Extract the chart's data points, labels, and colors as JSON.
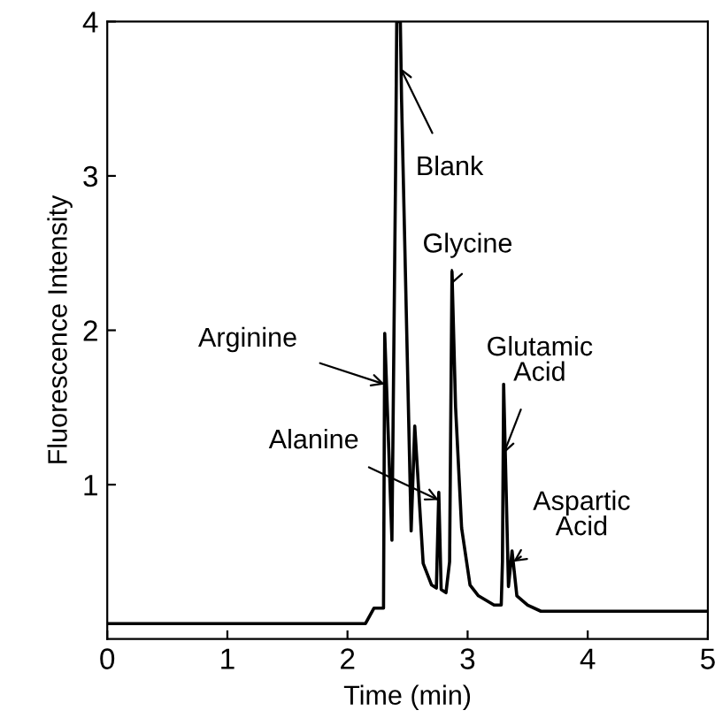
{
  "chart_data": {
    "type": "line",
    "xlabel": "Time (min)",
    "ylabel": "Fluorescence Intensity",
    "x": [
      0,
      2.15,
      2.22,
      2.29,
      2.3,
      2.31,
      2.37,
      2.4,
      2.41,
      2.44,
      2.45,
      2.53,
      2.56,
      2.63,
      2.7,
      2.74,
      2.76,
      2.78,
      2.82,
      2.85,
      2.87,
      2.9,
      2.95,
      3.02,
      3.09,
      3.22,
      3.28,
      3.29,
      3.3,
      3.34,
      3.37,
      3.41,
      3.5,
      3.61,
      5
    ],
    "series": [
      {
        "color": "#000000",
        "values": [
          0.1,
          0.1,
          0.2,
          0.2,
          0.2,
          1.98,
          0.64,
          3.0,
          4,
          4,
          3.5,
          0.7,
          1.38,
          0.49,
          0.35,
          0.33,
          0.95,
          0.32,
          0.3,
          0.5,
          2.38,
          1.5,
          0.72,
          0.35,
          0.28,
          0.22,
          0.22,
          0.5,
          1.65,
          0.34,
          0.57,
          0.28,
          0.22,
          0.18,
          0.18
        ]
      }
    ],
    "xlim": [
      0,
      5
    ],
    "ylim": [
      0,
      4
    ],
    "xticks": [
      0,
      1,
      2,
      3,
      4,
      5
    ],
    "yticks": [
      1,
      2,
      3,
      4
    ],
    "grid": false,
    "legend": false,
    "marker": "none",
    "line_style": "solid",
    "annotations": [
      {
        "text": "Arginine",
        "x": 2.31,
        "y": 1.65
      },
      {
        "text": "Blank",
        "x": 2.44,
        "y": 3.7
      },
      {
        "text": "Glycine",
        "x": 2.87,
        "y": 2.3
      },
      {
        "text": "Alanine",
        "x": 2.76,
        "y": 0.9
      },
      {
        "text": "Glutamic\nAcid",
        "x": 3.3,
        "y": 1.2
      },
      {
        "text": "Aspartic\nAcid",
        "x": 3.38,
        "y": 0.5
      }
    ]
  }
}
